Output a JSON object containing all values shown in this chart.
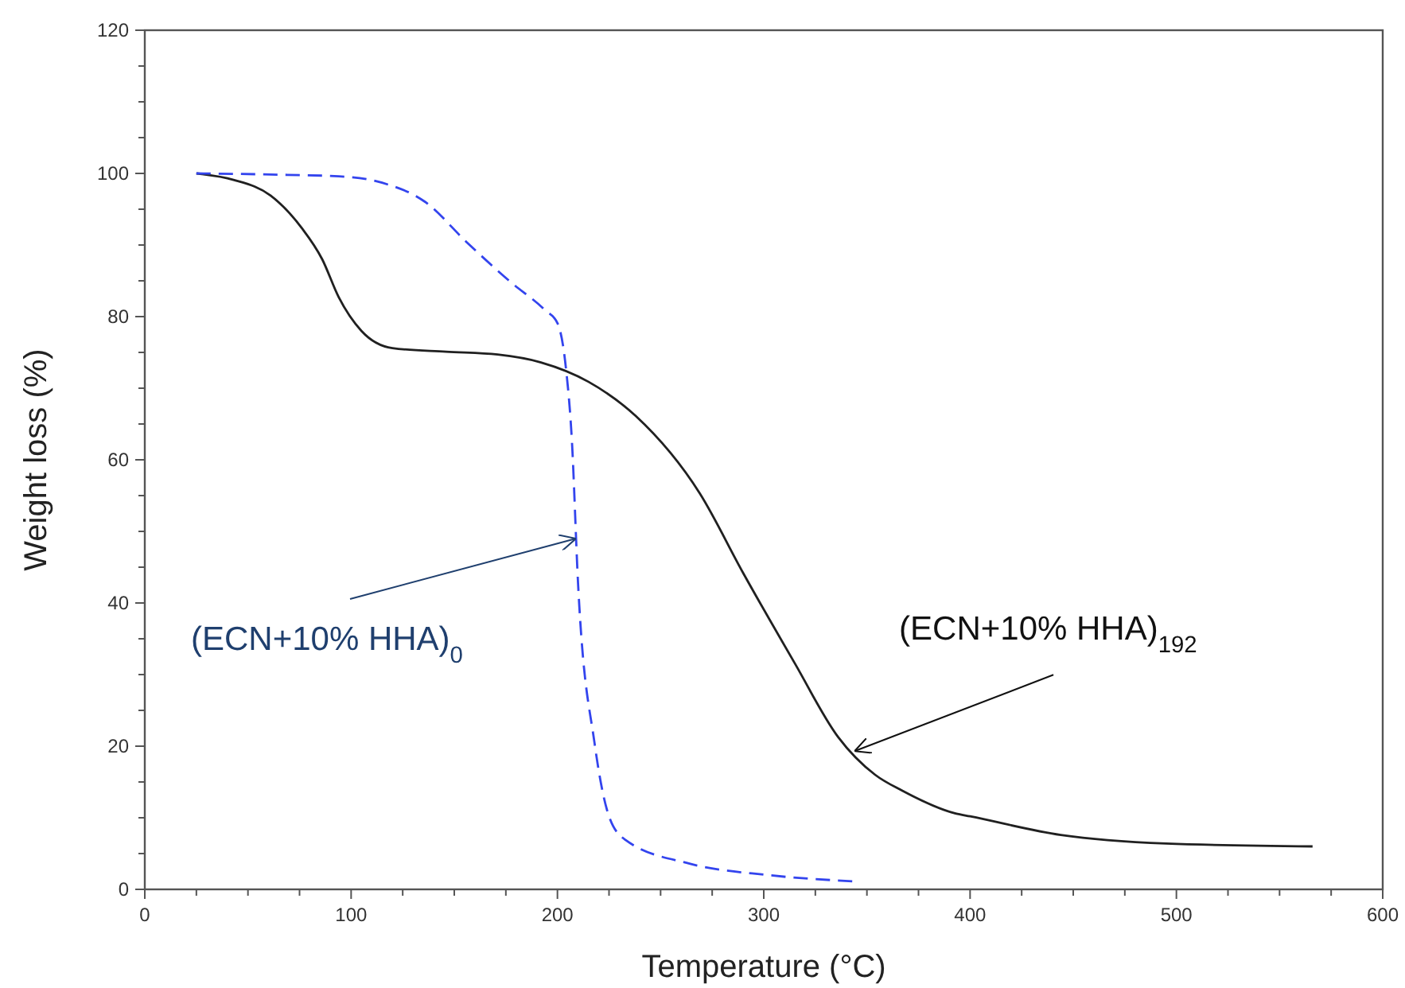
{
  "chart_data": {
    "type": "line",
    "xlabel": "Temperature (°C)",
    "ylabel": "Weight loss (%)",
    "xlim": [
      0,
      600
    ],
    "ylim": [
      0,
      120
    ],
    "xticks": [
      0,
      {
        "value": 25,
        "label": null
      },
      {
        "value": 50,
        "label": null
      },
      {
        "value": 75,
        "label": null
      },
      100,
      {
        "value": 125,
        "label": null
      },
      {
        "value": 150,
        "label": null
      },
      {
        "value": 175,
        "label": null
      },
      200,
      {
        "value": 225,
        "label": null
      },
      {
        "value": 250,
        "label": null
      },
      {
        "value": 275,
        "label": null
      },
      300,
      {
        "value": 325,
        "label": null
      },
      {
        "value": 350,
        "label": null
      },
      {
        "value": 375,
        "label": null
      },
      400,
      {
        "value": 425,
        "label": null
      },
      {
        "value": 450,
        "label": null
      },
      {
        "value": 475,
        "label": null
      },
      500,
      {
        "value": 525,
        "label": null
      },
      {
        "value": 550,
        "label": null
      },
      {
        "value": 575,
        "label": null
      },
      600
    ],
    "yticks": [
      0,
      {
        "value": 5,
        "label": null
      },
      {
        "value": 10,
        "label": null
      },
      {
        "value": 15,
        "label": null
      },
      20,
      {
        "value": 25,
        "label": null
      },
      {
        "value": 30,
        "label": null
      },
      {
        "value": 35,
        "label": null
      },
      40,
      {
        "value": 45,
        "label": null
      },
      {
        "value": 50,
        "label": null
      },
      {
        "value": 55,
        "label": null
      },
      60,
      {
        "value": 65,
        "label": null
      },
      {
        "value": 70,
        "label": null
      },
      {
        "value": 75,
        "label": null
      },
      80,
      {
        "value": 85,
        "label": null
      },
      {
        "value": 90,
        "label": null
      },
      {
        "value": 95,
        "label": null
      },
      100,
      {
        "value": 105,
        "label": null
      },
      {
        "value": 110,
        "label": null
      },
      {
        "value": 115,
        "label": null
      },
      120
    ],
    "grid": false,
    "marker": "none",
    "series": [
      {
        "color": "#202020",
        "line_style": "solid",
        "x": [
          25,
          43,
          61,
          76,
          86,
          94,
          105,
          120,
          146,
          171,
          192,
          215,
          238,
          269,
          290,
          315,
          336,
          354,
          367,
          393,
          400,
          444,
          495,
          566
        ],
        "values": [
          100,
          99.1,
          96.9,
          92.4,
          88,
          82.7,
          78,
          75.6,
          75.1,
          74.7,
          73.6,
          70.9,
          66.1,
          55.3,
          44.2,
          31.6,
          21.3,
          16,
          13.8,
          10.6,
          10.2,
          7.6,
          6.4,
          6
        ]
      },
      {
        "color": "#3344ee",
        "line_style": "dashed",
        "x": [
          25,
          69,
          94,
          115,
          136,
          156,
          177,
          194,
          200,
          204,
          207,
          210,
          218,
          225,
          233,
          264,
          302,
          345
        ],
        "values": [
          100,
          99.8,
          99.6,
          98.7,
          96,
          90.4,
          84.9,
          80.9,
          79.1,
          73.1,
          62.7,
          42.7,
          20.4,
          10.2,
          6.9,
          3.6,
          2,
          1.1
        ]
      }
    ],
    "annotations": [
      {
        "text": "(ECN+10% HHA)$_{0}$",
        "x": 209,
        "y": 49
      },
      {
        "text": "(ECN+10% HHA)$_{192}$",
        "x": 344,
        "y": 19.3
      }
    ]
  }
}
